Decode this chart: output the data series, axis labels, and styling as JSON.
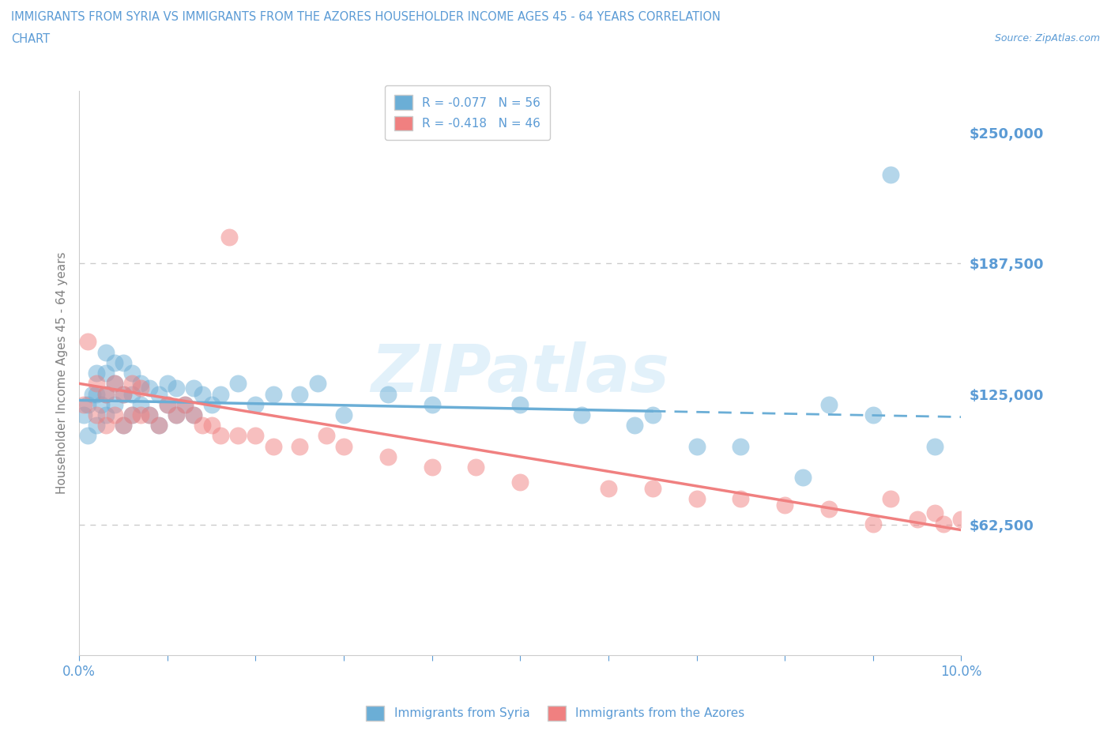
{
  "title_line1": "IMMIGRANTS FROM SYRIA VS IMMIGRANTS FROM THE AZORES HOUSEHOLDER INCOME AGES 45 - 64 YEARS CORRELATION",
  "title_line2": "CHART",
  "source_text": "Source: ZipAtlas.com",
  "ylabel": "Householder Income Ages 45 - 64 years",
  "xlim": [
    0.0,
    0.1
  ],
  "ylim": [
    0,
    270000
  ],
  "yticks": [
    0,
    62500,
    125000,
    187500,
    250000
  ],
  "ytick_labels": [
    "",
    "$62,500",
    "$125,000",
    "$187,500",
    "$250,000"
  ],
  "xticks": [
    0.0,
    0.01,
    0.02,
    0.03,
    0.04,
    0.05,
    0.06,
    0.07,
    0.08,
    0.09,
    0.1
  ],
  "xtick_labels": [
    "0.0%",
    "",
    "",
    "",
    "",
    "",
    "",
    "",
    "",
    "",
    "10.0%"
  ],
  "grid_color": "#cccccc",
  "syria_color": "#6baed6",
  "azores_color": "#f08080",
  "watermark": "ZIPatlas",
  "background_color": "#ffffff",
  "title_color": "#5b9bd5",
  "axis_label_color": "#808080",
  "tick_label_color": "#5b9bd5",
  "legend_R_label_syria": "R = -0.077   N = 56",
  "legend_R_label_azores": "R = -0.418   N = 46",
  "syria_trend_x_solid_end": 0.065,
  "syria_scatter_x": [
    0.0005,
    0.001,
    0.001,
    0.0015,
    0.002,
    0.002,
    0.002,
    0.0025,
    0.003,
    0.003,
    0.003,
    0.003,
    0.004,
    0.004,
    0.004,
    0.005,
    0.005,
    0.005,
    0.006,
    0.006,
    0.006,
    0.007,
    0.007,
    0.008,
    0.008,
    0.009,
    0.009,
    0.01,
    0.01,
    0.011,
    0.011,
    0.012,
    0.013,
    0.013,
    0.014,
    0.015,
    0.016,
    0.018,
    0.02,
    0.022,
    0.025,
    0.027,
    0.03,
    0.035,
    0.04,
    0.05,
    0.057,
    0.063,
    0.065,
    0.07,
    0.075,
    0.082,
    0.085,
    0.09,
    0.092,
    0.097
  ],
  "syria_scatter_y": [
    115000,
    120000,
    105000,
    125000,
    110000,
    125000,
    135000,
    120000,
    115000,
    125000,
    135000,
    145000,
    120000,
    130000,
    140000,
    110000,
    125000,
    140000,
    115000,
    125000,
    135000,
    120000,
    130000,
    115000,
    128000,
    110000,
    125000,
    120000,
    130000,
    115000,
    128000,
    120000,
    115000,
    128000,
    125000,
    120000,
    125000,
    130000,
    120000,
    125000,
    125000,
    130000,
    115000,
    125000,
    120000,
    120000,
    115000,
    110000,
    115000,
    100000,
    100000,
    85000,
    120000,
    115000,
    230000,
    100000
  ],
  "azores_scatter_x": [
    0.0005,
    0.001,
    0.002,
    0.002,
    0.003,
    0.003,
    0.004,
    0.004,
    0.005,
    0.005,
    0.006,
    0.006,
    0.007,
    0.007,
    0.008,
    0.009,
    0.01,
    0.011,
    0.012,
    0.013,
    0.014,
    0.015,
    0.016,
    0.017,
    0.018,
    0.02,
    0.022,
    0.025,
    0.028,
    0.03,
    0.035,
    0.04,
    0.045,
    0.05,
    0.06,
    0.065,
    0.07,
    0.075,
    0.08,
    0.085,
    0.09,
    0.092,
    0.095,
    0.097,
    0.098,
    0.1
  ],
  "azores_scatter_y": [
    120000,
    150000,
    115000,
    130000,
    110000,
    125000,
    115000,
    130000,
    110000,
    125000,
    115000,
    130000,
    115000,
    128000,
    115000,
    110000,
    120000,
    115000,
    120000,
    115000,
    110000,
    110000,
    105000,
    200000,
    105000,
    105000,
    100000,
    100000,
    105000,
    100000,
    95000,
    90000,
    90000,
    83000,
    80000,
    80000,
    75000,
    75000,
    72000,
    70000,
    63000,
    75000,
    65000,
    68000,
    63000,
    65000
  ]
}
